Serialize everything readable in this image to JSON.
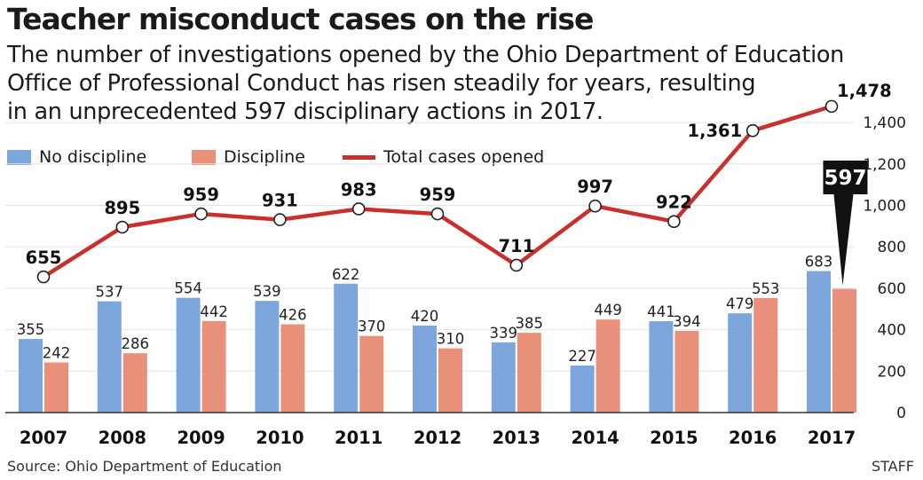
{
  "header": {
    "title": "Teacher misconduct cases on the rise",
    "subtitle_lines": [
      "The number of investigations opened by the Ohio Department of Education",
      "Office of Professional Conduct has risen steadily for years, resulting",
      "in an unprecedented 597 disciplinary actions in 2017."
    ]
  },
  "legend": {
    "no_discipline": "No discipline",
    "discipline": "Discipline",
    "total": "Total cases opened"
  },
  "footer": {
    "source": "Source: Ohio Department of Education",
    "credit": "STAFF"
  },
  "colors": {
    "no_discipline": "#7da7dc",
    "discipline": "#e8907a",
    "total_line": "#c9302c",
    "grid": "#e3e3e3",
    "callout": "#111111"
  },
  "chart_data": {
    "type": "bar",
    "categories": [
      "2007",
      "2008",
      "2009",
      "2010",
      "2011",
      "2012",
      "2013",
      "2014",
      "2015",
      "2016",
      "2017"
    ],
    "series": [
      {
        "name": "No discipline",
        "type": "bar",
        "values": [
          355,
          537,
          554,
          539,
          622,
          420,
          339,
          227,
          441,
          479,
          683
        ],
        "labels": [
          "355",
          "537",
          "554",
          "539",
          "622",
          "420",
          "339",
          "227",
          "441",
          "479",
          "683"
        ]
      },
      {
        "name": "Discipline",
        "type": "bar",
        "values": [
          242,
          286,
          442,
          426,
          370,
          310,
          385,
          449,
          394,
          553,
          597
        ],
        "labels": [
          "242",
          "286",
          "442",
          "426",
          "370",
          "310",
          "385",
          "449",
          "394",
          "553",
          ""
        ]
      },
      {
        "name": "Total cases opened",
        "type": "line",
        "values": [
          655,
          895,
          959,
          931,
          983,
          959,
          711,
          997,
          922,
          1361,
          1478
        ],
        "labels": [
          "655",
          "895",
          "959",
          "931",
          "983",
          "959",
          "711",
          "997",
          "922",
          "1,361",
          "1,478"
        ]
      }
    ],
    "yticks": [
      0,
      200,
      400,
      600,
      800,
      1000,
      1200,
      1400
    ],
    "ytick_labels": [
      "0",
      "200",
      "400",
      "600",
      "800",
      "1,000",
      "1,200",
      "1,400"
    ],
    "ylim": [
      0,
      1500
    ],
    "y_axis_side": "right",
    "grid": true,
    "callout": {
      "category": "2017",
      "series": "Discipline",
      "text": "597"
    },
    "legend_position": "top-left"
  }
}
